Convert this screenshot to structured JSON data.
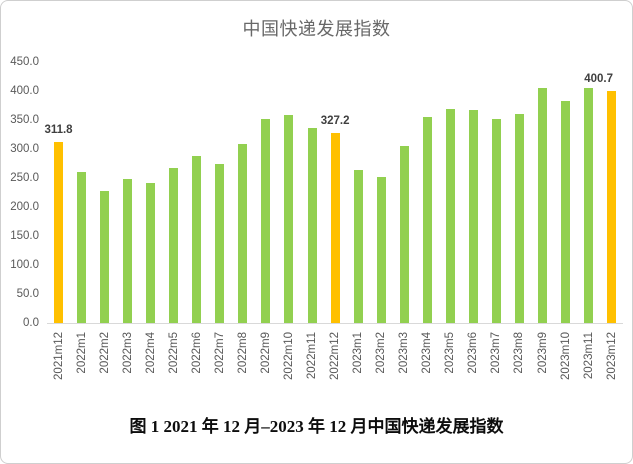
{
  "chart": {
    "title": "中国快递发展指数",
    "caption": "图 1 2021 年 12 月–2023 年 12 月中国快递发展指数"
  },
  "colors": {
    "bar_default": "#92D050",
    "bar_highlight": "#FFC000",
    "axis_text": "#595959",
    "title_text": "#686868",
    "data_label_text": "#3F3F3F",
    "baseline": "#D9D9D9",
    "frame_border": "#CFCFCF"
  },
  "chart_data": {
    "type": "bar",
    "title": "中国快递发展指数",
    "xlabel": "",
    "ylabel": "",
    "ylim": [
      0,
      450
    ],
    "ytick_interval": 50,
    "yticks": [
      "450.0",
      "400.0",
      "350.0",
      "300.0",
      "250.0",
      "200.0",
      "150.0",
      "100.0",
      "50.0",
      "0.0"
    ],
    "grid": false,
    "legend": "none",
    "x_label_rotation": -90,
    "bars": [
      {
        "category": "2021m12",
        "value": 311.8,
        "highlight": true,
        "label": "311.8"
      },
      {
        "category": "2022m1",
        "value": 260,
        "highlight": false
      },
      {
        "category": "2022m2",
        "value": 228,
        "highlight": false
      },
      {
        "category": "2022m3",
        "value": 248,
        "highlight": false
      },
      {
        "category": "2022m4",
        "value": 241,
        "highlight": false
      },
      {
        "category": "2022m5",
        "value": 267,
        "highlight": false
      },
      {
        "category": "2022m6",
        "value": 288,
        "highlight": false
      },
      {
        "category": "2022m7",
        "value": 274,
        "highlight": false
      },
      {
        "category": "2022m8",
        "value": 309,
        "highlight": false
      },
      {
        "category": "2022m9",
        "value": 352,
        "highlight": false
      },
      {
        "category": "2022m10",
        "value": 358,
        "highlight": false
      },
      {
        "category": "2022m11",
        "value": 337,
        "highlight": false
      },
      {
        "category": "2022m12",
        "value": 327.2,
        "highlight": true,
        "label": "327.2"
      },
      {
        "category": "2023m1",
        "value": 263,
        "highlight": false
      },
      {
        "category": "2023m2",
        "value": 252,
        "highlight": false
      },
      {
        "category": "2023m3",
        "value": 306,
        "highlight": false
      },
      {
        "category": "2023m4",
        "value": 356,
        "highlight": false
      },
      {
        "category": "2023m5",
        "value": 369,
        "highlight": false
      },
      {
        "category": "2023m6",
        "value": 367,
        "highlight": false
      },
      {
        "category": "2023m7",
        "value": 351,
        "highlight": false
      },
      {
        "category": "2023m8",
        "value": 360,
        "highlight": false
      },
      {
        "category": "2023m9",
        "value": 405,
        "highlight": false
      },
      {
        "category": "2023m10",
        "value": 383,
        "highlight": false
      },
      {
        "category": "2023m11",
        "value": 406,
        "highlight": false
      },
      {
        "category": "2023m12",
        "value": 400.7,
        "highlight": true,
        "label": "400.7"
      }
    ]
  }
}
